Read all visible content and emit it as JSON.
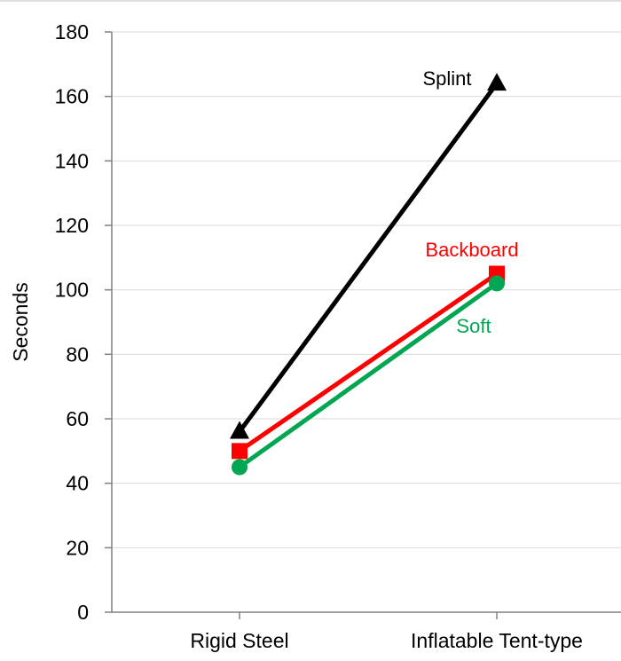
{
  "chart_data": {
    "type": "line",
    "title": "",
    "xlabel": "",
    "ylabel": "Seconds",
    "categories": [
      "Rigid Steel",
      "Inflatable Tent-type"
    ],
    "ylim": [
      0,
      180
    ],
    "ytick_step": 20,
    "yticks": [
      "0",
      "20",
      "40",
      "60",
      "80",
      "100",
      "120",
      "140",
      "160",
      "180"
    ],
    "grid": true,
    "legend": "none",
    "series": [
      {
        "name": "Splint",
        "values": [
          56,
          164
        ],
        "color": "#000000",
        "marker": "triangle"
      },
      {
        "name": "Backboard",
        "values": [
          50,
          105
        ],
        "color": "#ff0000",
        "marker": "square"
      },
      {
        "name": "Soft",
        "values": [
          45,
          102
        ],
        "color": "#00a651",
        "marker": "circle"
      }
    ]
  }
}
